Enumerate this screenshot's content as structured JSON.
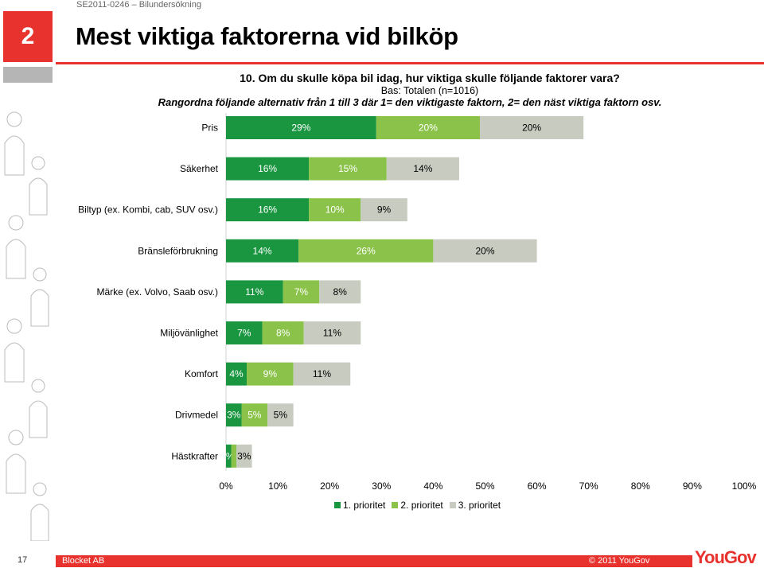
{
  "header": {
    "doc_id": "SE2011-0246 – Bilundersökning",
    "slide_number": "2",
    "title": "Mest viktiga faktorerna vid bilköp"
  },
  "chart_text": {
    "question": "10. Om du skulle köpa bil idag, hur viktiga skulle följande faktorer vara?",
    "base": "Bas: Totalen (n=1016)",
    "instruction": "Rangordna följande alternativ från 1 till 3 där 1= den viktigaste faktorn, 2= den näst viktiga faktorn osv."
  },
  "chart_data": {
    "type": "bar",
    "orientation": "horizontal",
    "stacked": true,
    "categories": [
      "Pris",
      "Säkerhet",
      "Biltyp (ex. Kombi, cab, SUV osv.)",
      "Bränsleförbrukning",
      "Märke (ex. Volvo, Saab osv.)",
      "Miljövänlighet",
      "Komfort",
      "Drivmedel",
      "Hästkrafter"
    ],
    "series": [
      {
        "name": "1. prioritet",
        "values": [
          29,
          16,
          16,
          14,
          11,
          7,
          4,
          3,
          1
        ],
        "labels": [
          "29%",
          "16%",
          "16%",
          "14%",
          "11%",
          "7%",
          "4%",
          "3%",
          "%"
        ]
      },
      {
        "name": "2. prioritet",
        "values": [
          20,
          15,
          10,
          26,
          7,
          8,
          9,
          5,
          1
        ],
        "labels": [
          "20%",
          "15%",
          "10%",
          "26%",
          "7%",
          "8%",
          "9%",
          "5%",
          ""
        ]
      },
      {
        "name": "3. prioritet",
        "values": [
          20,
          14,
          9,
          20,
          8,
          11,
          11,
          5,
          3
        ],
        "labels": [
          "20%",
          "14%",
          "9%",
          "20%",
          "8%",
          "11%",
          "11%",
          "5%",
          "3%"
        ]
      }
    ],
    "xticks": [
      "0%",
      "10%",
      "20%",
      "30%",
      "40%",
      "50%",
      "60%",
      "70%",
      "80%",
      "90%",
      "100%"
    ],
    "xlim": [
      0,
      100
    ],
    "legend_position": "bottom",
    "colors": [
      "#1a9641",
      "#8bc34a",
      "#c8ccc0"
    ]
  },
  "footer": {
    "page_number": "17",
    "company": "Blocket AB",
    "copyright": "© 2011 YouGov",
    "logo_text": "YouGov"
  }
}
